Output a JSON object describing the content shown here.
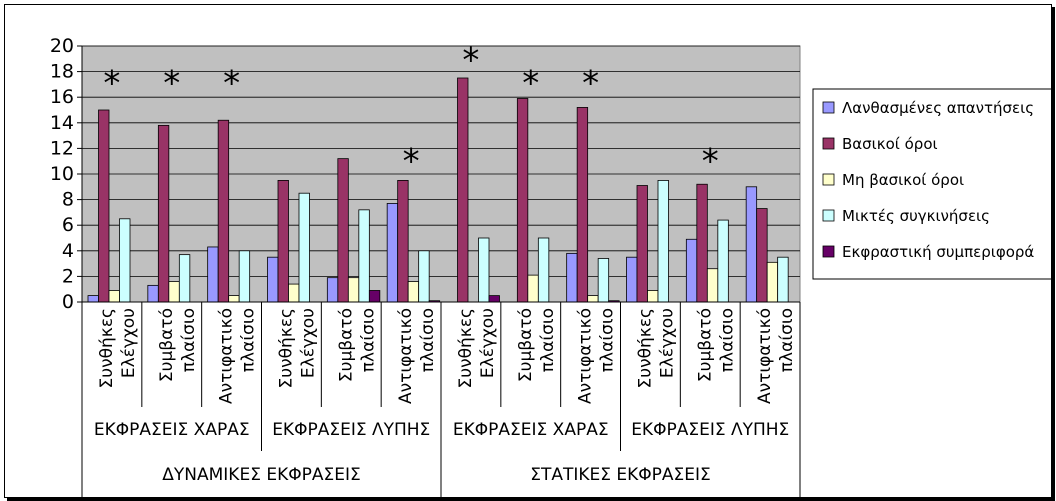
{
  "chart_data": {
    "type": "bar",
    "ylim": [
      0,
      20
    ],
    "yticks": [
      0,
      2,
      4,
      6,
      8,
      10,
      12,
      14,
      16,
      18,
      20
    ],
    "grid": true,
    "legend_position": "right",
    "categories": [
      [
        "Συνθήκες",
        "Ελέγχου"
      ],
      [
        "Συμβατό",
        "πλαίσιο"
      ],
      [
        "Αντιφατικό",
        "πλαίσιο"
      ],
      [
        "Συνθήκες",
        "Ελέγχου"
      ],
      [
        "Συμβατό",
        "πλαίσιο"
      ],
      [
        "Αντιφατικό",
        "πλαίσιο"
      ],
      [
        "Συνθήκες",
        "Ελέγχου"
      ],
      [
        "Συμβατό",
        "πλαίσιο"
      ],
      [
        "Αντιφατικό",
        "πλαίσιο"
      ],
      [
        "Συνθήκες",
        "Ελέγχου"
      ],
      [
        "Συμβατό",
        "πλαίσιο"
      ],
      [
        "Αντιφατικό",
        "πλαίσιο"
      ]
    ],
    "group_level1": [
      {
        "label": "ΕΚΦΡΑΣΕΙΣ ΧΑΡΑΣ",
        "span": 3
      },
      {
        "label": "ΕΚΦΡΑΣΕΙΣ ΛΥΠΗΣ",
        "span": 3
      },
      {
        "label": "ΕΚΦΡΑΣΕΙΣ ΧΑΡΑΣ",
        "span": 3
      },
      {
        "label": "ΕΚΦΡΑΣΕΙΣ ΛΥΠΗΣ",
        "span": 3
      }
    ],
    "group_level2": [
      {
        "label": "ΔΥΝΑΜΙΚΕΣ ΕΚΦΡΑΣΕΙΣ",
        "span": 6
      },
      {
        "label": "ΣΤΑΤΙΚΕΣ ΕΚΦΡΑΣΕΙΣ",
        "span": 6
      }
    ],
    "series": [
      {
        "name": "Λανθασμένες απαντήσεις",
        "color": "#9999FF",
        "values": [
          0.5,
          1.3,
          4.3,
          3.5,
          1.9,
          7.7,
          0,
          0,
          3.8,
          3.5,
          4.9,
          9.0
        ]
      },
      {
        "name": "Βασικοί όροι",
        "color": "#993366",
        "values": [
          15.0,
          13.8,
          14.2,
          9.5,
          11.2,
          9.5,
          17.5,
          15.9,
          15.2,
          9.1,
          9.2,
          7.3
        ]
      },
      {
        "name": "Μη βασικοί όροι",
        "color": "#FFFFCC",
        "values": [
          0.9,
          1.6,
          0.5,
          1.4,
          1.9,
          1.6,
          0,
          2.1,
          0.5,
          0.9,
          2.6,
          3.1
        ]
      },
      {
        "name": "Μικτές συγκινήσεις",
        "color": "#CCFFFF",
        "values": [
          6.5,
          3.7,
          4.0,
          8.5,
          7.2,
          4.0,
          5.0,
          5.0,
          3.4,
          9.5,
          6.4,
          3.5
        ]
      },
      {
        "name": "Εκφραστική συμπεριφορά",
        "color": "#660066",
        "values": [
          0,
          0,
          0,
          0,
          0.9,
          0.1,
          0.5,
          0,
          0.1,
          0,
          0,
          0
        ]
      }
    ],
    "annotations": [
      {
        "category_index": 0,
        "text": "*",
        "y": 17.3
      },
      {
        "category_index": 1,
        "text": "*",
        "y": 17.3
      },
      {
        "category_index": 2,
        "text": "*",
        "y": 17.3
      },
      {
        "category_index": 5,
        "text": "*",
        "y": 11.2
      },
      {
        "category_index": 6,
        "text": "*",
        "y": 19.1
      },
      {
        "category_index": 7,
        "text": "*",
        "y": 17.3
      },
      {
        "category_index": 8,
        "text": "*",
        "y": 17.3
      },
      {
        "category_index": 10,
        "text": "*",
        "y": 11.2
      }
    ]
  }
}
